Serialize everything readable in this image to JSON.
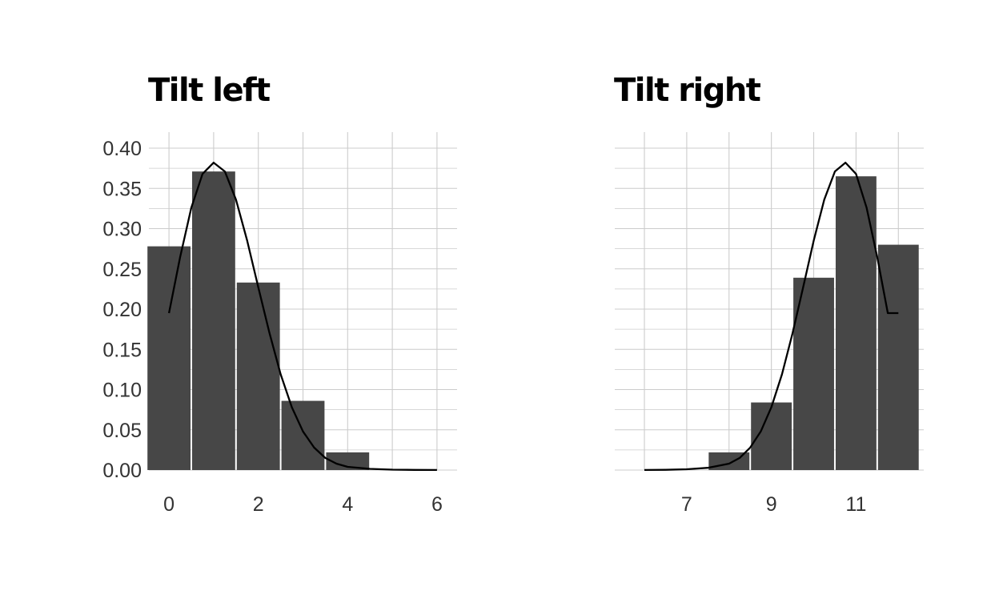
{
  "chart_data": [
    {
      "type": "bar",
      "title": "Tilt left",
      "xlabel": "",
      "ylabel": "",
      "x": [
        0,
        1,
        2,
        3,
        4,
        5,
        6
      ],
      "values": [
        0.278,
        0.371,
        0.233,
        0.086,
        0.022,
        0.0,
        0.0
      ],
      "density_curve": {
        "x": [
          0,
          0.25,
          0.5,
          0.75,
          1.0,
          1.25,
          1.5,
          1.75,
          2.0,
          2.25,
          2.5,
          2.75,
          3.0,
          3.25,
          3.5,
          3.75,
          4.0,
          4.5,
          5.0,
          5.5,
          6.0
        ],
        "y": [
          0.195,
          0.265,
          0.326,
          0.368,
          0.382,
          0.371,
          0.336,
          0.285,
          0.227,
          0.17,
          0.119,
          0.078,
          0.048,
          0.028,
          0.015,
          0.008,
          0.004,
          0.0015,
          0.0005,
          0.0002,
          0.0001
        ]
      },
      "xlim": [
        -0.45,
        6.45
      ],
      "ylim": [
        0,
        0.4
      ],
      "xticks": [
        "0",
        "2",
        "4",
        "6"
      ],
      "yticks": [
        "0.00",
        "0.05",
        "0.10",
        "0.15",
        "0.20",
        "0.25",
        "0.30",
        "0.35",
        "0.40"
      ],
      "grid": true,
      "bar_color": "#474747"
    },
    {
      "type": "bar",
      "title": "Tilt right",
      "xlabel": "",
      "ylabel": "",
      "x": [
        6,
        7,
        8,
        9,
        10,
        11,
        12
      ],
      "values": [
        0.0,
        0.0,
        0.022,
        0.084,
        0.239,
        0.365,
        0.28
      ],
      "density_curve": {
        "x": [
          6,
          6.5,
          7,
          7.5,
          8,
          8.25,
          8.5,
          8.75,
          9,
          9.25,
          9.5,
          9.75,
          10,
          10.25,
          10.5,
          10.75,
          11,
          11.25,
          11.5,
          11.75,
          12
        ],
        "y": [
          0.0001,
          0.0003,
          0.001,
          0.0028,
          0.008,
          0.015,
          0.028,
          0.048,
          0.078,
          0.119,
          0.17,
          0.227,
          0.285,
          0.336,
          0.371,
          0.382,
          0.368,
          0.326,
          0.265,
          0.195,
          0.195
        ]
      },
      "xlim": [
        5.3,
        12.6
      ],
      "ylim": [
        0,
        0.4
      ],
      "xticks": [
        "7",
        "9",
        "11"
      ],
      "yticks": [],
      "grid": true,
      "bar_color": "#474747"
    }
  ],
  "colors": {
    "bar": "#474747",
    "curve": "#000000",
    "grid": "#cccccc",
    "tick_text": "#333333"
  }
}
